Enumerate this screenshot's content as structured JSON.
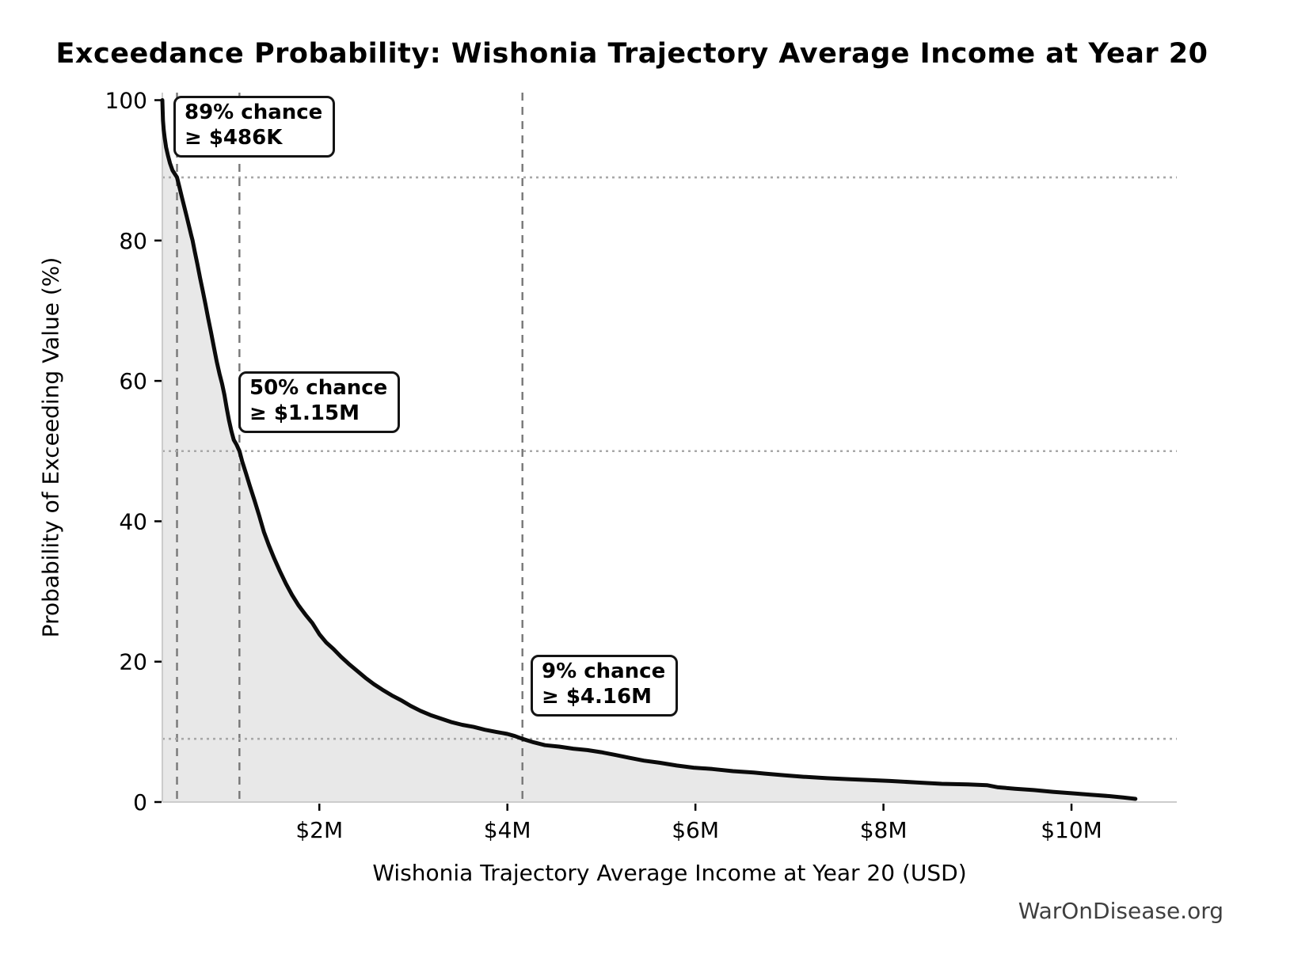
{
  "title": "Exceedance Probability: Wishonia Trajectory Average Income at Year 20",
  "watermark": "WarOnDisease.org",
  "chart_data": {
    "type": "area",
    "title": "Exceedance Probability: Wishonia Trajectory Average Income at Year 20",
    "xlabel": "Wishonia Trajectory Average Income at Year 20 (USD)",
    "ylabel": "Probability of Exceeding Value (%)",
    "legend": "none",
    "xlim_musd": [
      0.33,
      11.12
    ],
    "ylim": [
      0,
      100
    ],
    "x_ticks": [
      {
        "value_musd": 2,
        "label": "$2M"
      },
      {
        "value_musd": 4,
        "label": "$4M"
      },
      {
        "value_musd": 6,
        "label": "$6M"
      },
      {
        "value_musd": 8,
        "label": "$8M"
      },
      {
        "value_musd": 10,
        "label": "$10M"
      }
    ],
    "y_ticks": [
      {
        "value": 0,
        "label": "0"
      },
      {
        "value": 20,
        "label": "20"
      },
      {
        "value": 40,
        "label": "40"
      },
      {
        "value": 60,
        "label": "60"
      },
      {
        "value": 80,
        "label": "80"
      },
      {
        "value": 100,
        "label": "100"
      }
    ],
    "annotations": [
      {
        "line1": "89% chance",
        "line2": "≥ $486K",
        "prob_pct": 89,
        "value_musd": 0.486
      },
      {
        "line1": "50% chance",
        "line2": "≥ $1.15M",
        "prob_pct": 50,
        "value_musd": 1.15
      },
      {
        "line1": "9% chance",
        "line2": "≥ $4.16M",
        "prob_pct": 9,
        "value_musd": 4.16
      }
    ],
    "series": [
      {
        "name": "Exceedance probability",
        "points_musd_pct": [
          [
            0.33,
            100.0
          ],
          [
            0.333,
            98.5
          ],
          [
            0.337,
            97.1
          ],
          [
            0.344,
            95.8
          ],
          [
            0.355,
            94.6
          ],
          [
            0.37,
            93.3
          ],
          [
            0.39,
            92.1
          ],
          [
            0.412,
            91.0
          ],
          [
            0.438,
            90.0
          ],
          [
            0.462,
            89.5
          ],
          [
            0.486,
            89.0
          ],
          [
            0.512,
            87.6
          ],
          [
            0.537,
            86.2
          ],
          [
            0.562,
            84.9
          ],
          [
            0.588,
            83.5
          ],
          [
            0.613,
            82.1
          ],
          [
            0.638,
            80.7
          ],
          [
            0.652,
            80.0
          ],
          [
            0.675,
            78.4
          ],
          [
            0.703,
            76.6
          ],
          [
            0.731,
            74.7
          ],
          [
            0.76,
            72.8
          ],
          [
            0.789,
            70.9
          ],
          [
            0.818,
            68.9
          ],
          [
            0.848,
            66.9
          ],
          [
            0.878,
            64.8
          ],
          [
            0.908,
            62.8
          ],
          [
            0.938,
            61.0
          ],
          [
            0.965,
            59.6
          ],
          [
            0.99,
            58.0
          ],
          [
            1.015,
            56.1
          ],
          [
            1.04,
            54.3
          ],
          [
            1.065,
            52.8
          ],
          [
            1.09,
            51.6
          ],
          [
            1.12,
            50.9
          ],
          [
            1.15,
            50.0
          ],
          [
            1.18,
            48.5
          ],
          [
            1.22,
            46.8
          ],
          [
            1.262,
            45.0
          ],
          [
            1.31,
            43.0
          ],
          [
            1.36,
            40.8
          ],
          [
            1.41,
            38.5
          ],
          [
            1.462,
            36.6
          ],
          [
            1.52,
            34.7
          ],
          [
            1.58,
            32.9
          ],
          [
            1.645,
            31.1
          ],
          [
            1.71,
            29.5
          ],
          [
            1.78,
            28.0
          ],
          [
            1.852,
            26.7
          ],
          [
            1.925,
            25.5
          ],
          [
            2.0,
            23.9
          ],
          [
            2.075,
            22.7
          ],
          [
            2.15,
            21.8
          ],
          [
            2.23,
            20.7
          ],
          [
            2.312,
            19.7
          ],
          [
            2.4,
            18.7
          ],
          [
            2.49,
            17.7
          ],
          [
            2.58,
            16.8
          ],
          [
            2.672,
            16.0
          ],
          [
            2.77,
            15.2
          ],
          [
            2.87,
            14.5
          ],
          [
            2.97,
            13.7
          ],
          [
            3.075,
            13.0
          ],
          [
            3.18,
            12.4
          ],
          [
            3.29,
            11.9
          ],
          [
            3.4,
            11.4
          ],
          [
            3.52,
            11.0
          ],
          [
            3.64,
            10.7
          ],
          [
            3.76,
            10.3
          ],
          [
            3.88,
            10.0
          ],
          [
            4.0,
            9.7
          ],
          [
            4.08,
            9.4
          ],
          [
            4.16,
            9.0
          ],
          [
            4.28,
            8.5
          ],
          [
            4.4,
            8.1
          ],
          [
            4.55,
            7.9
          ],
          [
            4.7,
            7.6
          ],
          [
            4.85,
            7.4
          ],
          [
            5.0,
            7.1
          ],
          [
            5.15,
            6.7
          ],
          [
            5.3,
            6.3
          ],
          [
            5.45,
            5.9
          ],
          [
            5.62,
            5.6
          ],
          [
            5.8,
            5.2
          ],
          [
            5.98,
            4.9
          ],
          [
            6.18,
            4.7
          ],
          [
            6.4,
            4.4
          ],
          [
            6.62,
            4.2
          ],
          [
            6.74,
            4.05
          ],
          [
            6.95,
            3.8
          ],
          [
            7.15,
            3.6
          ],
          [
            7.4,
            3.4
          ],
          [
            7.65,
            3.25
          ],
          [
            7.9,
            3.1
          ],
          [
            8.07,
            3.0
          ],
          [
            8.35,
            2.8
          ],
          [
            8.62,
            2.6
          ],
          [
            8.9,
            2.5
          ],
          [
            9.1,
            2.4
          ],
          [
            9.22,
            2.1
          ],
          [
            9.4,
            1.9
          ],
          [
            9.6,
            1.7
          ],
          [
            9.8,
            1.45
          ],
          [
            10.0,
            1.25
          ],
          [
            10.2,
            1.05
          ],
          [
            10.4,
            0.85
          ],
          [
            10.55,
            0.65
          ],
          [
            10.68,
            0.45
          ]
        ]
      }
    ],
    "colors": {
      "curve": "#0b0b0b",
      "fill": "#e8e8e8",
      "dashed_guide": "#777777",
      "dotted_guide": "#a8a8a8",
      "spine": "#cccccc",
      "tick": "#000000",
      "text": "#000000",
      "watermark": "#3f3f3f"
    }
  }
}
